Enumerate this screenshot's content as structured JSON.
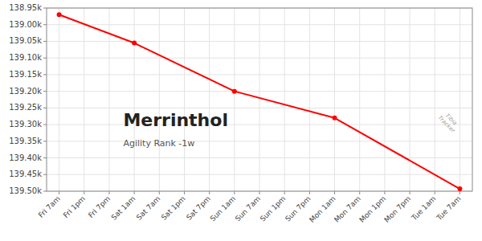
{
  "chart_data": {
    "type": "line",
    "title": "Merrinthol",
    "subtitle": "Agility Rank -1w",
    "annotations": [
      "Tibia\nTracker"
    ],
    "x": [
      0,
      3,
      7,
      11,
      16
    ],
    "values": [
      138970,
      139055,
      139200,
      139280,
      139493
    ],
    "color": "#ff0000",
    "xlim": [
      -0.5,
      16.5
    ],
    "xticks": [
      {
        "value": 0,
        "label": "Fri 7am"
      },
      {
        "value": 1,
        "label": "Fri 1pm"
      },
      {
        "value": 2,
        "label": "Fri 7pm"
      },
      {
        "value": 3,
        "label": "Sat 1am"
      },
      {
        "value": 4,
        "label": "Sat 7am"
      },
      {
        "value": 5,
        "label": "Sat 1pm"
      },
      {
        "value": 6,
        "label": "Sat 7pm"
      },
      {
        "value": 7,
        "label": "Sun 1am"
      },
      {
        "value": 8,
        "label": "Sun 7am"
      },
      {
        "value": 9,
        "label": "Sun 1pm"
      },
      {
        "value": 10,
        "label": "Sun 7pm"
      },
      {
        "value": 11,
        "label": "Mon 1am"
      },
      {
        "value": 12,
        "label": "Mon 7am"
      },
      {
        "value": 13,
        "label": "Mon 1pm"
      },
      {
        "value": 14,
        "label": "Mon 7pm"
      },
      {
        "value": 15,
        "label": "Tue 1am"
      },
      {
        "value": 16,
        "label": "Tue 7am"
      }
    ],
    "ylim": [
      139500,
      138950
    ],
    "yticks": [
      {
        "value": 138950,
        "label": "138.95k"
      },
      {
        "value": 139000,
        "label": "139.00k"
      },
      {
        "value": 139050,
        "label": "139.05k"
      },
      {
        "value": 139100,
        "label": "139.10k"
      },
      {
        "value": 139150,
        "label": "139.15k"
      },
      {
        "value": 139200,
        "label": "139.20k"
      },
      {
        "value": 139250,
        "label": "139.25k"
      },
      {
        "value": 139300,
        "label": "139.30k"
      },
      {
        "value": 139350,
        "label": "139.35k"
      },
      {
        "value": 139400,
        "label": "139.40k"
      },
      {
        "value": 139450,
        "label": "139.45k"
      },
      {
        "value": 139500,
        "label": "139.50k"
      }
    ],
    "grid": true
  }
}
